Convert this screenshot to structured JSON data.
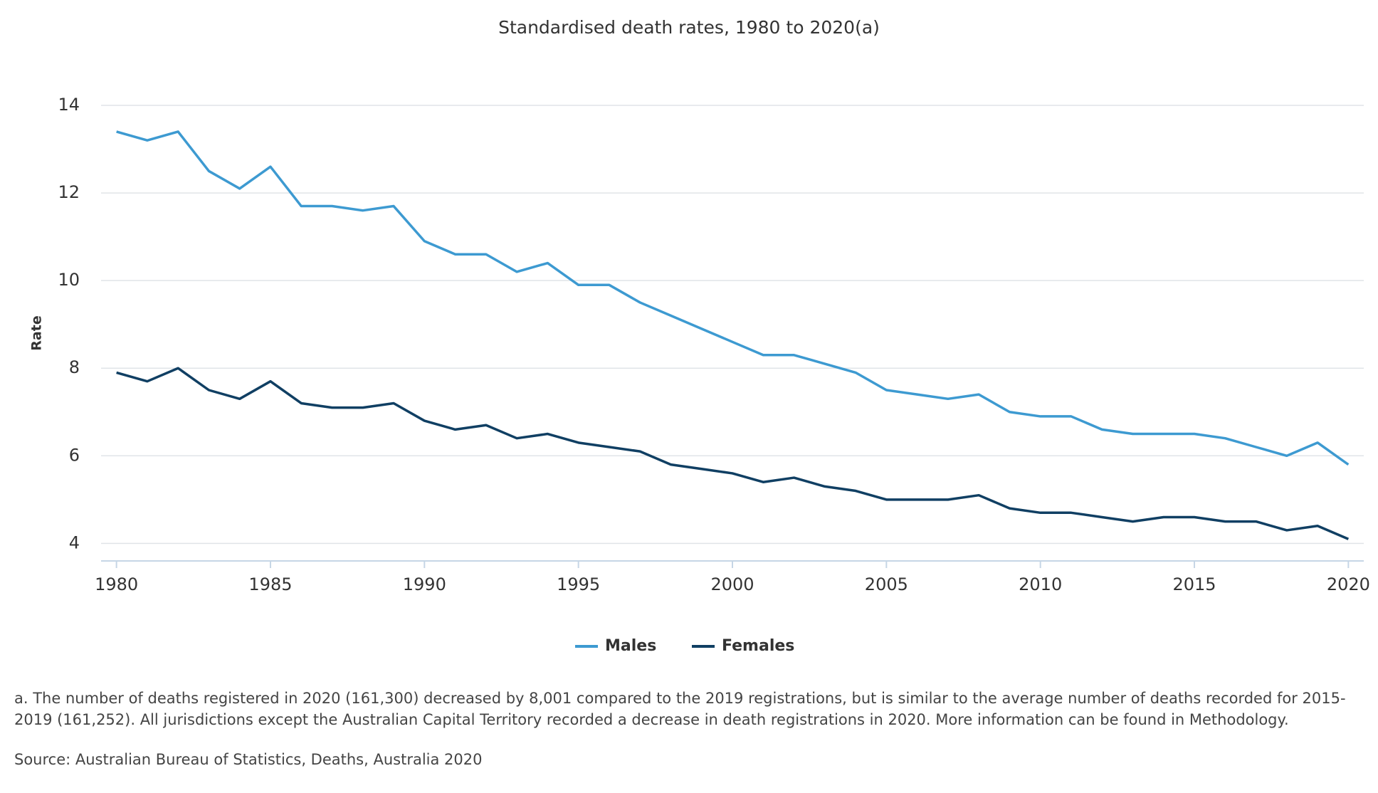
{
  "chart_data": {
    "type": "line",
    "title": "Standardised death rates, 1980 to 2020(a)",
    "y_label": "Rate",
    "x": [
      1980,
      1981,
      1982,
      1983,
      1984,
      1985,
      1986,
      1987,
      1988,
      1989,
      1990,
      1991,
      1992,
      1993,
      1994,
      1995,
      1996,
      1997,
      1998,
      1999,
      2000,
      2001,
      2002,
      2003,
      2004,
      2005,
      2006,
      2007,
      2008,
      2009,
      2010,
      2011,
      2012,
      2013,
      2014,
      2015,
      2016,
      2017,
      2018,
      2019,
      2020
    ],
    "series": [
      {
        "name": "Males",
        "color": "#3d9ad1",
        "values": [
          13.4,
          13.2,
          13.4,
          12.5,
          12.1,
          12.6,
          11.7,
          11.7,
          11.6,
          11.7,
          10.9,
          10.6,
          10.6,
          10.2,
          10.4,
          9.9,
          9.9,
          9.5,
          9.2,
          8.9,
          8.6,
          8.3,
          8.3,
          8.1,
          7.9,
          7.5,
          7.4,
          7.3,
          7.4,
          7.0,
          6.9,
          6.9,
          6.6,
          6.5,
          6.5,
          6.5,
          6.4,
          6.2,
          6.0,
          6.3,
          5.8
        ]
      },
      {
        "name": "Females",
        "color": "#103f63",
        "values": [
          7.9,
          7.7,
          8.0,
          7.5,
          7.3,
          7.7,
          7.2,
          7.1,
          7.1,
          7.2,
          6.8,
          6.6,
          6.7,
          6.4,
          6.5,
          6.3,
          6.2,
          6.1,
          5.8,
          5.7,
          5.6,
          5.4,
          5.5,
          5.3,
          5.2,
          5.0,
          5.0,
          5.0,
          5.1,
          4.8,
          4.7,
          4.7,
          4.6,
          4.5,
          4.6,
          4.6,
          4.5,
          4.5,
          4.3,
          4.4,
          4.1
        ]
      }
    ],
    "xlim": [
      1979.5,
      2020.5
    ],
    "xticks": [
      1980,
      1985,
      1990,
      1995,
      2000,
      2005,
      2010,
      2015,
      2020
    ],
    "ylim": [
      3.6,
      14
    ],
    "yticks": [
      4,
      6,
      8,
      10,
      12,
      14
    ],
    "grid": true,
    "legend": "bottom",
    "footnote": "a. The number of deaths registered in 2020 (161,300) decreased by 8,001 compared to the 2019 registrations, but is similar to the average number of deaths recorded for 2015-2019 (161,252). All jurisdictions except the Australian Capital Territory recorded a decrease in death registrations in 2020. More information can be found in Methodology.",
    "source": "Source: Australian Bureau of Statistics, Deaths, Australia 2020"
  }
}
